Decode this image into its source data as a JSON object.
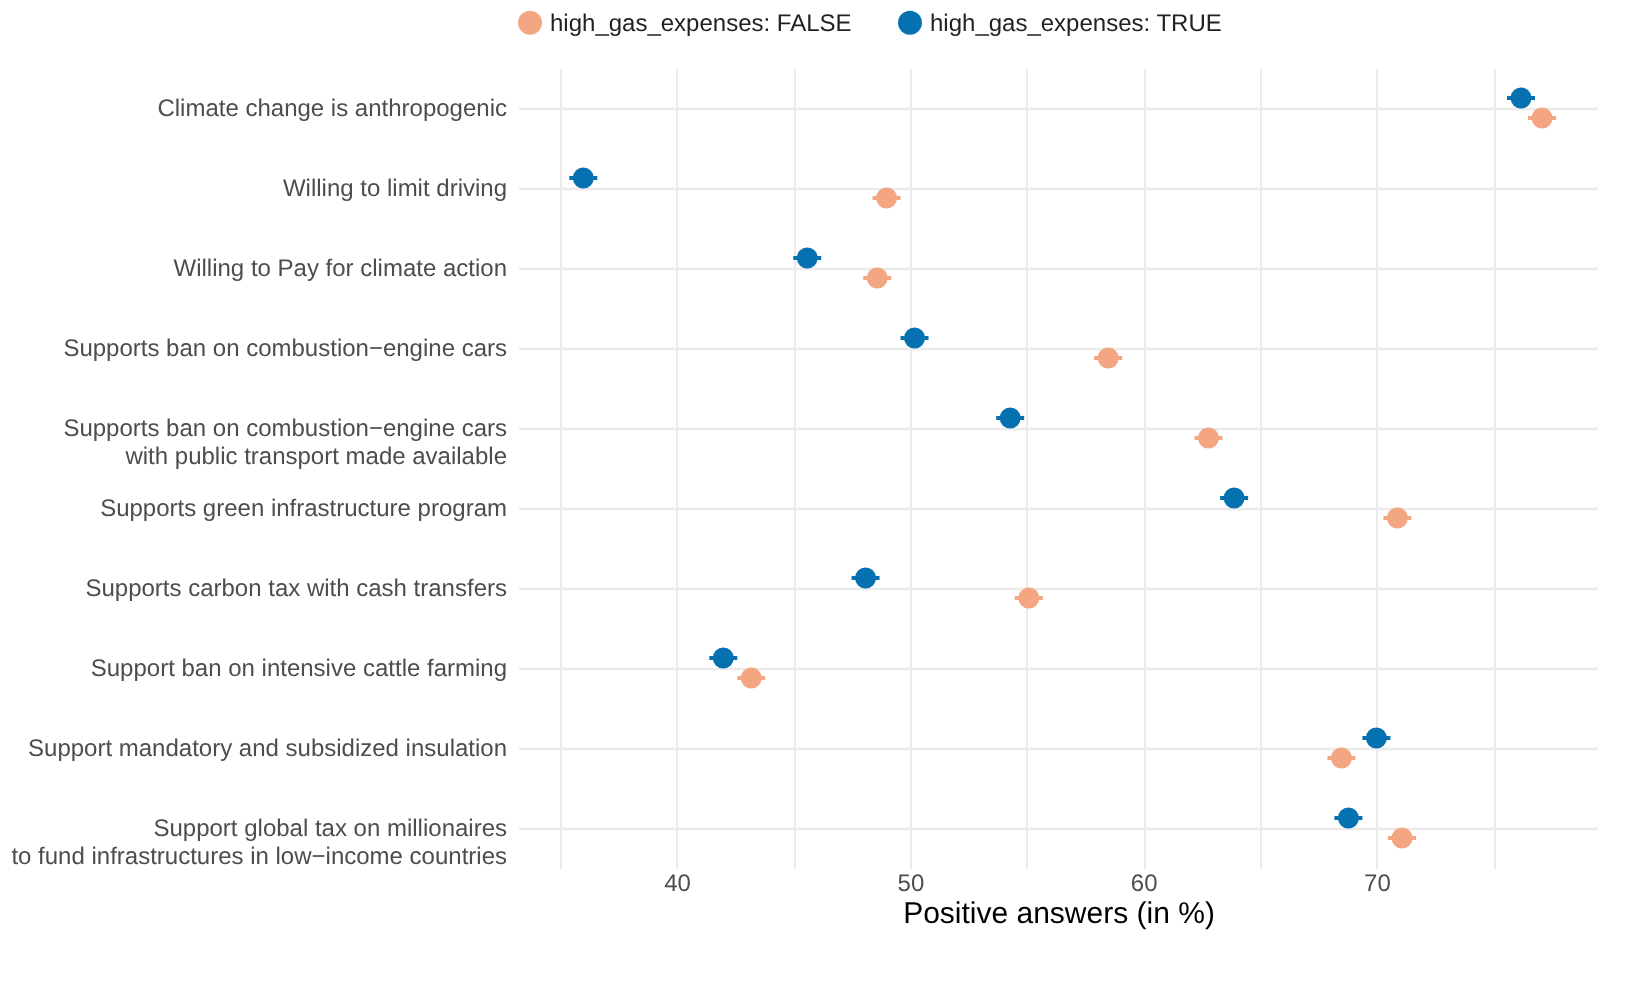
{
  "chart_data": {
    "type": "scatter",
    "xlabel": "Positive answers (in %)",
    "orientation": "horizontal",
    "categories": [
      "Climate change is anthropogenic",
      "Willing to limit driving",
      "Willing to Pay for climate action",
      "Supports ban on combustion−engine cars",
      "Supports ban on combustion−engine cars\nwith public transport made available",
      "Supports green infrastructure program",
      "Supports carbon tax with cash transfers",
      "Support ban on intensive cattle farming",
      "Support mandatory and subsidized insulation",
      "Support global tax on millionaires\nto fund infrastructures in low−income countries"
    ],
    "series": [
      {
        "name": "high_gas_expenses: FALSE",
        "color": "#f4a582",
        "values": [
          77.1,
          49.0,
          48.6,
          58.5,
          62.8,
          70.9,
          55.1,
          43.2,
          68.5,
          71.1
        ],
        "errors": [
          0.6,
          0.6,
          0.6,
          0.6,
          0.6,
          0.6,
          0.6,
          0.6,
          0.6,
          0.6
        ]
      },
      {
        "name": "high_gas_expenses: TRUE",
        "color": "#0571b0",
        "values": [
          76.2,
          36.0,
          45.6,
          50.2,
          54.3,
          63.9,
          48.1,
          42.0,
          70.0,
          68.8
        ],
        "errors": [
          0.6,
          0.6,
          0.6,
          0.6,
          0.6,
          0.6,
          0.6,
          0.6,
          0.6,
          0.6
        ]
      }
    ],
    "xlim": [
      33.2,
      79.5
    ],
    "xticks": [
      {
        "value": 35,
        "label": null
      },
      40,
      {
        "value": 45,
        "label": null
      },
      50,
      {
        "value": 55,
        "label": null
      },
      60,
      {
        "value": 65,
        "label": null
      },
      70,
      {
        "value": 75,
        "label": null
      }
    ],
    "grid": true,
    "legend": "top",
    "marker": "circle"
  }
}
